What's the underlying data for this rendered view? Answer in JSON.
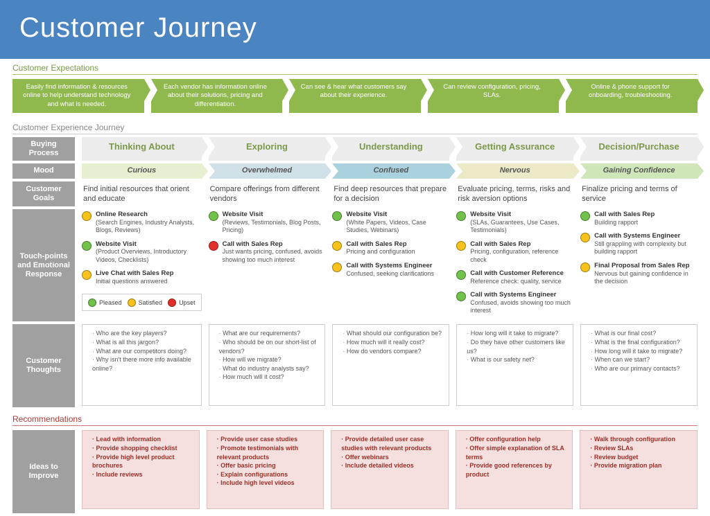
{
  "title": "Customer Journey",
  "sections": {
    "expectations": "Customer Expectations",
    "journey": "Customer Experience Journey",
    "recommendations": "Recommendations"
  },
  "rowLabels": {
    "buying": "Buying Process",
    "mood": "Mood",
    "goals": "Customer Goals",
    "touch": "Touch-points and Emotional Response",
    "thoughts": "Customer Thoughts",
    "ideas": "Ideas to Improve"
  },
  "legend": [
    {
      "label": "Pleased",
      "color": "#70c24a"
    },
    {
      "label": "Satisfied",
      "color": "#f6c21b"
    },
    {
      "label": "Upset",
      "color": "#e22f2b"
    }
  ],
  "colors": {
    "green": "#70c24a",
    "yellow": "#f6c21b",
    "red": "#e22f2b",
    "moodBg": [
      "#e6efcf",
      "#d0e0e7",
      "#aad1de",
      "#ece9c6",
      "#cfe6b8"
    ]
  },
  "expectations": [
    "Easily find information & resources online to help understand technology and what is needed.",
    "Each vendor has information online about their solutions, pricing and differentiation.",
    "Can see & hear what customers say about their experience.",
    "Can review configuration, pricing, SLAs.",
    "Online & phone support for onboarding, troubleshooting."
  ],
  "stages": [
    {
      "name": "Thinking About",
      "mood": "Curious",
      "goal": "Find initial resources that orient and educate",
      "touchpoints": [
        {
          "c": "yellow",
          "t": "Online Research",
          "d": "(Search Engines, Industry Analysts, Blogs, Reviews)"
        },
        {
          "c": "green",
          "t": "Website Visit",
          "d": "(Product Overviews, Introductory Videos, Checklists)"
        },
        {
          "c": "yellow",
          "t": "Live Chat with Sales Rep",
          "d": "Initial questions answered"
        }
      ],
      "thoughts": [
        "Who are the key players?",
        "What is all this jargon?",
        "What are our competitors doing?",
        "Why isn't there more info available online?"
      ],
      "ideas": [
        "Lead with information",
        "Provide shopping checklist",
        "Provide high level product brochures",
        "Include reviews"
      ]
    },
    {
      "name": "Exploring",
      "mood": "Overwhelmed",
      "goal": "Compare offerings from different vendors",
      "touchpoints": [
        {
          "c": "green",
          "t": "Website Visit",
          "d": "(Reviews, Testimonials, Blog Posts, Pricing)"
        },
        {
          "c": "red",
          "t": "Call with Sales Rep",
          "d": "Just wants pricing, confused, avoids showing too much interest"
        }
      ],
      "thoughts": [
        "What are our requirements?",
        "Who should be on our short-list of vendors?",
        "How will we migrate?",
        "What do industry analysts say?",
        "How much will it cost?"
      ],
      "ideas": [
        "Provide user case studies",
        "Promote testimonials with relevant products",
        "Offer basic pricing",
        "Explain configurations",
        "Include high level videos"
      ]
    },
    {
      "name": "Understanding",
      "mood": "Confused",
      "goal": "Find deep resources that prepare for a decision",
      "touchpoints": [
        {
          "c": "green",
          "t": "Website Visit",
          "d": "(White Papers, Videos, Case Studies, Webinars)"
        },
        {
          "c": "yellow",
          "t": "Call with Sales Rep",
          "d": "Pricing and configuration"
        },
        {
          "c": "yellow",
          "t": "Call with Systems Engineer",
          "d": "Confused, seeking clarifications"
        }
      ],
      "thoughts": [
        "What should our configuration be?",
        "How much will it really cost?",
        "How do vendors compare?"
      ],
      "ideas": [
        "Provide detailed user case studies with relevant products",
        "Offer webinars",
        "Include detailed videos"
      ]
    },
    {
      "name": "Getting Assurance",
      "mood": "Nervous",
      "goal": "Evaluate pricing, terms, risks and risk aversion options",
      "touchpoints": [
        {
          "c": "green",
          "t": "Website Visit",
          "d": "(SLAs, Guarantees, Use Cases, Testimonials)"
        },
        {
          "c": "yellow",
          "t": "Call with Sales Rep",
          "d": "Pricing, configuration, reference check"
        },
        {
          "c": "green",
          "t": "Call with Customer Reference",
          "d": "Reference check: quality, service"
        },
        {
          "c": "green",
          "t": "Call with Systems Engineer",
          "d": "Confused, avoids showing too much interest"
        }
      ],
      "thoughts": [
        "How long will it take to migrate?",
        "Do they have other customers like us?",
        "What is our safety net?"
      ],
      "ideas": [
        "Offer configuration help",
        "Offer simple explanation of SLA terms",
        "Provide good references by product"
      ]
    },
    {
      "name": "Decision/Purchase",
      "mood": "Gaining Confidence",
      "goal": "Finalize pricing and terms of service",
      "touchpoints": [
        {
          "c": "green",
          "t": "Call with Sales Rep",
          "d": "Building rapport"
        },
        {
          "c": "yellow",
          "t": "Call with Systems Engineer",
          "d": "Still grappling with complexity but building rapport"
        },
        {
          "c": "yellow",
          "t": "Final Proposal from Sales Rep",
          "d": "Nervous but gaining confidence in the decision"
        }
      ],
      "thoughts": [
        "What is our final cost?",
        "What is the final configuration?",
        "How long will it take to migrate?",
        "When can we start?",
        "Who are our primary contacts?"
      ],
      "ideas": [
        "Walk through configuration",
        "Review SLAs",
        "Review budget",
        "Provide migration plan"
      ]
    }
  ]
}
